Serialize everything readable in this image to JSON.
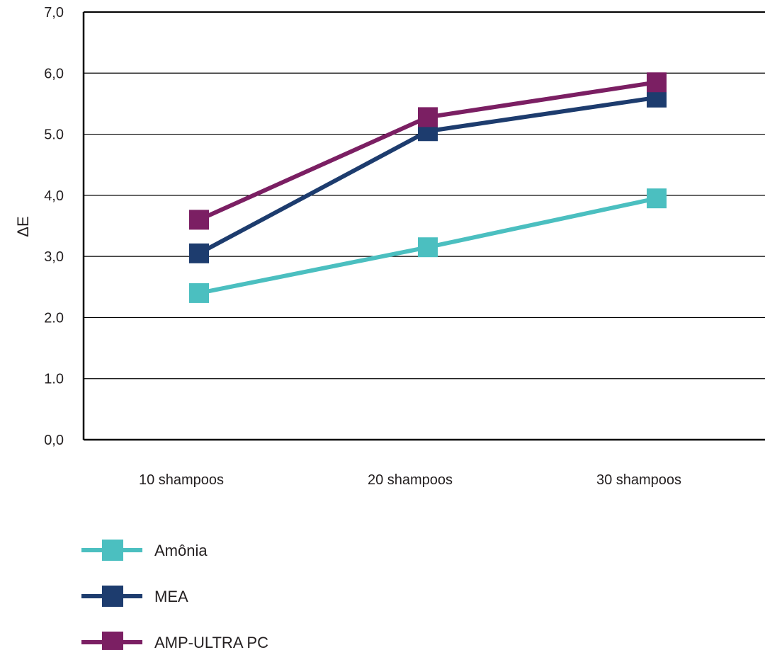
{
  "chart_data": {
    "type": "line",
    "title": "",
    "xlabel": "",
    "ylabel": "ΔE",
    "categories": [
      "10 shampoos",
      "20 shampoos",
      "30 shampoos"
    ],
    "ylim": [
      0,
      7
    ],
    "y_ticks": [
      "0,0",
      "1.0",
      "2.0",
      "3,0",
      "4,0",
      "5.0",
      "6,0",
      "7,0"
    ],
    "grid": "horizontal",
    "legend_position": "bottom-left",
    "series": [
      {
        "name": "Amônia",
        "color": "#4bbfc0",
        "values": [
          2.4,
          3.15,
          3.95
        ]
      },
      {
        "name": "MEA",
        "color": "#1d3c6e",
        "values": [
          3.05,
          5.05,
          5.6
        ]
      },
      {
        "name": "AMP-ULTRA PC",
        "color": "#7b1f63",
        "values": [
          3.6,
          5.28,
          5.85
        ]
      }
    ]
  }
}
